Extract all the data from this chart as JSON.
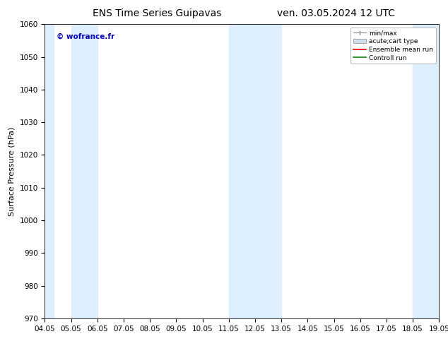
{
  "title_left": "ENS Time Series Guipavas",
  "title_right": "ven. 03.05.2024 12 UTC",
  "ylabel": "Surface Pressure (hPa)",
  "ylim": [
    970,
    1060
  ],
  "yticks": [
    970,
    980,
    990,
    1000,
    1010,
    1020,
    1030,
    1040,
    1050,
    1060
  ],
  "xlim": [
    0,
    15
  ],
  "xtick_labels": [
    "04.05",
    "05.05",
    "06.05",
    "07.05",
    "08.05",
    "09.05",
    "10.05",
    "11.05",
    "12.05",
    "13.05",
    "14.05",
    "15.05",
    "16.05",
    "17.05",
    "18.05",
    "19.05"
  ],
  "xtick_positions": [
    0,
    1,
    2,
    3,
    4,
    5,
    6,
    7,
    8,
    9,
    10,
    11,
    12,
    13,
    14,
    15
  ],
  "watermark": "© wofrance.fr",
  "watermark_color": "#0000cc",
  "shaded_bands": [
    {
      "xmin": 0,
      "xmax": 0.33
    },
    {
      "xmin": 1,
      "xmax": 2
    },
    {
      "xmin": 7,
      "xmax": 9
    },
    {
      "xmin": 14,
      "xmax": 15
    }
  ],
  "band_color": "#ddeeff",
  "background_color": "#ffffff",
  "legend_entries": [
    "min/max",
    "acute;cart type",
    "Ensemble mean run",
    "Controll run"
  ],
  "legend_colors": [
    "#aaaaaa",
    "#cce0f0",
    "#ff0000",
    "#008800"
  ],
  "title_fontsize": 10,
  "label_fontsize": 8,
  "tick_fontsize": 7.5,
  "legend_fontsize": 6.5,
  "watermark_fontsize": 7.5
}
